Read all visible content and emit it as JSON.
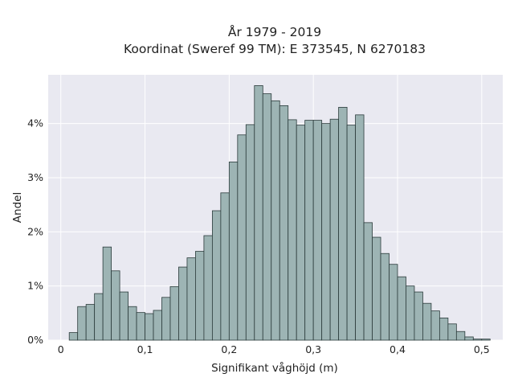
{
  "chart_data": {
    "type": "bar",
    "title_line1": "År 1979 - 2019",
    "title_line2": "Koordinat (Sweref 99 TM): E 373545, N 6270183",
    "xlabel": "Signifikant våghöjd (m)",
    "ylabel": "Andel",
    "bin_width": 0.01,
    "x_start": 0.01,
    "xlim": [
      -0.015,
      0.525
    ],
    "ylim": [
      0,
      0.049
    ],
    "grid": true,
    "x_ticks": [
      {
        "value": 0,
        "label": "0"
      },
      {
        "value": 0.1,
        "label": "0,1"
      },
      {
        "value": 0.2,
        "label": "0,2"
      },
      {
        "value": 0.3,
        "label": "0,3"
      },
      {
        "value": 0.4,
        "label": "0,4"
      },
      {
        "value": 0.5,
        "label": "0,5"
      }
    ],
    "y_ticks": [
      {
        "value": 0,
        "label": "0%"
      },
      {
        "value": 0.01,
        "label": "1%"
      },
      {
        "value": 0.02,
        "label": "2%"
      },
      {
        "value": 0.03,
        "label": "3%"
      },
      {
        "value": 0.04,
        "label": "4%"
      }
    ],
    "values": [
      0.0014,
      0.0062,
      0.0066,
      0.0086,
      0.0172,
      0.0128,
      0.0089,
      0.0062,
      0.0051,
      0.0049,
      0.0055,
      0.0079,
      0.0099,
      0.0135,
      0.0152,
      0.0164,
      0.0193,
      0.0239,
      0.0272,
      0.0329,
      0.0379,
      0.0398,
      0.047,
      0.0455,
      0.0442,
      0.0433,
      0.0407,
      0.0397,
      0.0406,
      0.0406,
      0.04,
      0.0408,
      0.043,
      0.0397,
      0.0416,
      0.0217,
      0.019,
      0.016,
      0.014,
      0.0117,
      0.01,
      0.0089,
      0.0068,
      0.0054,
      0.0041,
      0.003,
      0.0016,
      0.0006,
      0.0002,
      0.0002
    ],
    "colors": {
      "plot_bg": "#e9e9f1",
      "bar_fill": "#9db4b4",
      "bar_edge": "#2b3b3b",
      "grid": "#ffffff"
    }
  }
}
